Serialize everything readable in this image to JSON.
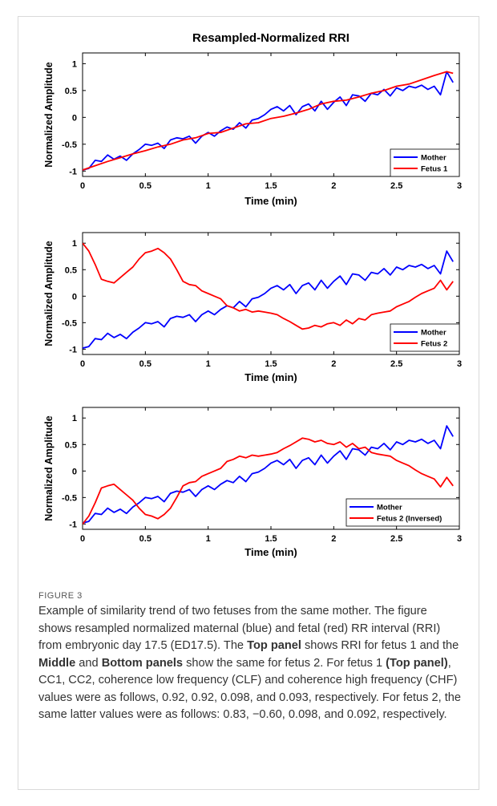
{
  "figure": {
    "label": "FIGURE 3",
    "caption": [
      {
        "t": "Example of similarity trend of two fetuses from the same mother. The figure shows resampled normalized maternal (blue) and fetal (red) RR interval (RRI) from embryonic day 17.5 (ED17.5). The "
      },
      {
        "t": "Top panel",
        "b": true
      },
      {
        "t": " shows RRI for fetus 1 and the "
      },
      {
        "t": "Middle",
        "b": true
      },
      {
        "t": " and "
      },
      {
        "t": "Bottom panels",
        "b": true
      },
      {
        "t": " show the same for fetus 2. For fetus 1 "
      },
      {
        "t": "(Top panel)",
        "b": true
      },
      {
        "t": ", CC1, CC2, coherence low frequency (CLF) and coherence high frequency (CHF) values were as follows, 0.92, 0.92, 0.098, and 0.093, respectively. For fetus 2, the same latter values were as follows: 0.83, −0.60, 0.098, and 0.092, respectively."
      }
    ]
  },
  "colors": {
    "mother": "#0000ff",
    "fetus": "#ff0000"
  },
  "chart_data": [
    {
      "type": "line",
      "title": "Resampled-Normalized RRI",
      "xlabel": "Time (min)",
      "ylabel": "Normalized Amplitude",
      "xlim": [
        0,
        3
      ],
      "ylim": [
        -1.1,
        1.2
      ],
      "xticks": [
        "0",
        "0.5",
        "1",
        "1.5",
        "2",
        "2.5",
        "3"
      ],
      "yticks": [
        "-1",
        "-0.5",
        "0",
        "0.5",
        "1"
      ],
      "legend_position": "bottom-right",
      "series": [
        {
          "name": "Mother",
          "color": "#0000ff",
          "x": [
            0,
            0.05,
            0.1,
            0.15,
            0.2,
            0.25,
            0.3,
            0.35,
            0.4,
            0.45,
            0.5,
            0.55,
            0.6,
            0.65,
            0.7,
            0.75,
            0.8,
            0.85,
            0.9,
            0.95,
            1.0,
            1.05,
            1.1,
            1.15,
            1.2,
            1.25,
            1.3,
            1.35,
            1.4,
            1.45,
            1.5,
            1.55,
            1.6,
            1.65,
            1.7,
            1.75,
            1.8,
            1.85,
            1.9,
            1.95,
            2.0,
            2.05,
            2.1,
            2.15,
            2.2,
            2.25,
            2.3,
            2.35,
            2.4,
            2.45,
            2.5,
            2.55,
            2.6,
            2.65,
            2.7,
            2.75,
            2.8,
            2.85,
            2.9,
            2.95
          ],
          "y": [
            -0.98,
            -0.95,
            -0.8,
            -0.82,
            -0.7,
            -0.78,
            -0.72,
            -0.8,
            -0.68,
            -0.6,
            -0.5,
            -0.52,
            -0.48,
            -0.58,
            -0.42,
            -0.38,
            -0.4,
            -0.35,
            -0.48,
            -0.35,
            -0.28,
            -0.35,
            -0.25,
            -0.18,
            -0.22,
            -0.1,
            -0.2,
            -0.05,
            -0.02,
            0.05,
            0.15,
            0.2,
            0.12,
            0.22,
            0.05,
            0.2,
            0.25,
            0.12,
            0.3,
            0.15,
            0.28,
            0.38,
            0.22,
            0.42,
            0.4,
            0.3,
            0.45,
            0.42,
            0.52,
            0.4,
            0.55,
            0.5,
            0.58,
            0.55,
            0.6,
            0.52,
            0.58,
            0.42,
            0.85,
            0.65
          ]
        },
        {
          "name": "Fetus 1",
          "color": "#ff0000",
          "x": [
            0,
            0.1,
            0.2,
            0.3,
            0.4,
            0.5,
            0.6,
            0.7,
            0.8,
            0.9,
            1.0,
            1.1,
            1.2,
            1.3,
            1.4,
            1.5,
            1.6,
            1.7,
            1.8,
            1.9,
            2.0,
            2.1,
            2.2,
            2.3,
            2.4,
            2.5,
            2.6,
            2.7,
            2.8,
            2.9,
            2.95
          ],
          "y": [
            -0.98,
            -0.9,
            -0.82,
            -0.75,
            -0.68,
            -0.62,
            -0.55,
            -0.5,
            -0.42,
            -0.38,
            -0.3,
            -0.28,
            -0.2,
            -0.12,
            -0.1,
            -0.02,
            0.02,
            0.08,
            0.15,
            0.25,
            0.3,
            0.32,
            0.38,
            0.45,
            0.5,
            0.58,
            0.62,
            0.7,
            0.78,
            0.85,
            0.82
          ]
        }
      ]
    },
    {
      "type": "line",
      "title": "",
      "xlabel": "Time (min)",
      "ylabel": "Normalized Amplitude",
      "xlim": [
        0,
        3
      ],
      "ylim": [
        -1.1,
        1.2
      ],
      "xticks": [
        "0",
        "0.5",
        "1",
        "1.5",
        "2",
        "2.5",
        "3"
      ],
      "yticks": [
        "-1",
        "-0.5",
        "0",
        "0.5",
        "1"
      ],
      "legend_position": "bottom-right",
      "series": [
        {
          "name": "Mother",
          "color": "#0000ff",
          "same_as": "panel1_mother"
        },
        {
          "name": "Fetus 2",
          "color": "#ff0000",
          "x": [
            0,
            0.05,
            0.1,
            0.15,
            0.2,
            0.25,
            0.3,
            0.35,
            0.4,
            0.45,
            0.5,
            0.55,
            0.6,
            0.65,
            0.7,
            0.75,
            0.8,
            0.85,
            0.9,
            0.95,
            1.0,
            1.05,
            1.1,
            1.15,
            1.2,
            1.25,
            1.3,
            1.35,
            1.4,
            1.45,
            1.5,
            1.55,
            1.6,
            1.65,
            1.7,
            1.75,
            1.8,
            1.85,
            1.9,
            1.95,
            2.0,
            2.05,
            2.1,
            2.15,
            2.2,
            2.25,
            2.3,
            2.35,
            2.4,
            2.45,
            2.5,
            2.55,
            2.6,
            2.65,
            2.7,
            2.75,
            2.8,
            2.85,
            2.9,
            2.95
          ],
          "y": [
            1.0,
            0.85,
            0.6,
            0.32,
            0.28,
            0.25,
            0.35,
            0.45,
            0.55,
            0.7,
            0.82,
            0.85,
            0.9,
            0.82,
            0.7,
            0.5,
            0.28,
            0.22,
            0.2,
            0.1,
            0.05,
            0.0,
            -0.05,
            -0.18,
            -0.22,
            -0.28,
            -0.25,
            -0.3,
            -0.28,
            -0.3,
            -0.32,
            -0.35,
            -0.42,
            -0.48,
            -0.55,
            -0.62,
            -0.6,
            -0.55,
            -0.58,
            -0.52,
            -0.5,
            -0.55,
            -0.45,
            -0.52,
            -0.42,
            -0.45,
            -0.35,
            -0.32,
            -0.3,
            -0.28,
            -0.2,
            -0.15,
            -0.1,
            -0.02,
            0.05,
            0.1,
            0.15,
            0.3,
            0.12,
            0.28
          ]
        }
      ]
    },
    {
      "type": "line",
      "title": "",
      "xlabel": "Time (min)",
      "ylabel": "Normalized Amplitude",
      "xlim": [
        0,
        3
      ],
      "ylim": [
        -1.1,
        1.2
      ],
      "xticks": [
        "0",
        "0.5",
        "1",
        "1.5",
        "2",
        "2.5",
        "3"
      ],
      "yticks": [
        "-1",
        "-0.5",
        "0",
        "0.5",
        "1"
      ],
      "legend_position": "bottom-right",
      "series": [
        {
          "name": "Mother",
          "color": "#0000ff",
          "same_as": "panel1_mother"
        },
        {
          "name": "Fetus 2 (Inversed)",
          "color": "#ff0000",
          "inverse_of": "panel2_fetus2"
        }
      ]
    }
  ]
}
